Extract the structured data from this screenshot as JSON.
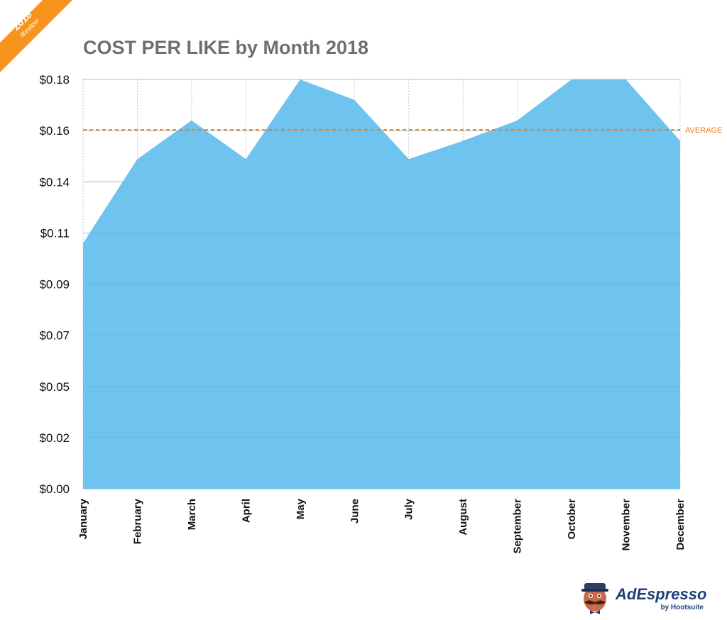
{
  "badge": {
    "year": "2018",
    "text": "Review",
    "color": "#f7941d"
  },
  "chart_data": {
    "type": "area",
    "title": "COST PER LIKE by Month 2018",
    "categories": [
      "January",
      "February",
      "March",
      "April",
      "May",
      "June",
      "July",
      "August",
      "September",
      "October",
      "November",
      "December"
    ],
    "series": [
      {
        "values": [
          0.108,
          0.145,
          0.162,
          0.145,
          0.18,
          0.171,
          0.145,
          0.153,
          0.162,
          0.18,
          0.18,
          0.153
        ],
        "color": "#6ec3ef"
      }
    ],
    "ytick_labels": [
      "$0.00",
      "$0.02",
      "$0.05",
      "$0.07",
      "$0.09",
      "$0.11",
      "$0.14",
      "$0.16",
      "$0.18"
    ],
    "ylim": [
      0,
      0.18
    ],
    "average": {
      "label": "AVERAGE",
      "value": 0.1578,
      "color": "#ef7d1a"
    },
    "grid": true
  },
  "logo": {
    "name": "AdEspresso",
    "sub": "by Hootsuite"
  }
}
